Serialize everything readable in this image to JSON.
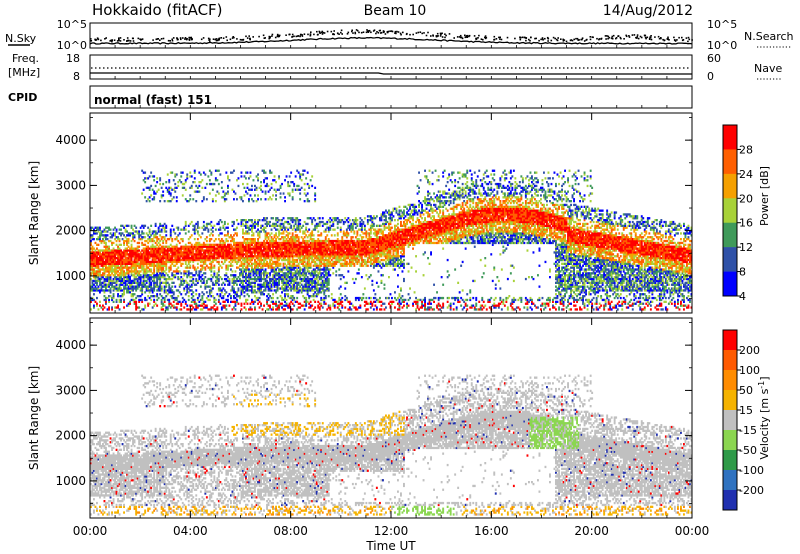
{
  "header": {
    "station": "Hokkaido (fitACF)",
    "beam": "Beam 10",
    "date": "14/Aug/2012"
  },
  "noise_panel": {
    "left_label": "N.Sky",
    "left_ticks": [
      "10^5",
      "10^0"
    ],
    "right_label": "N.Search",
    "right_ticks": [
      "10^5",
      "10^0"
    ]
  },
  "freq_panel": {
    "left_label_1": "Freq.",
    "left_label_2": "[MHz]",
    "left_ticks": [
      "18",
      "8"
    ],
    "right_label": "Nave",
    "right_ticks": [
      "60",
      "0"
    ]
  },
  "cpid_panel": {
    "label": "CPID",
    "value": "normal (fast) 151"
  },
  "chart_data": [
    {
      "type": "heatmap",
      "name": "power",
      "ylabel": "Slant Range [km]",
      "ylim": [
        180,
        4600
      ],
      "yticks": [
        "4000",
        "3000",
        "2000",
        "1000"
      ],
      "colorbar_label": "Power [dB]",
      "colorbar_ticks": [
        "28",
        "24",
        "20",
        "16",
        "12",
        "8",
        "4"
      ],
      "colors": [
        "#0000ff",
        "#2f51a8",
        "#3f9a5a",
        "#a8d238",
        "#f5a000",
        "#ff5f00",
        "#ff0000"
      ]
    },
    {
      "type": "heatmap",
      "name": "velocity",
      "ylabel": "Slant Range [km]",
      "ylim": [
        180,
        4600
      ],
      "yticks": [
        "4000",
        "3000",
        "2000",
        "1000"
      ],
      "colorbar_label": "Velocity [m s",
      "colorbar_label_sup": "-1",
      "colorbar_label_end": "]",
      "colorbar_ticks": [
        "200",
        "100",
        "50",
        "15",
        "-15",
        "-50",
        "-100",
        "-200"
      ],
      "colors": [
        "#2030b0",
        "#2f72c0",
        "#2e9a48",
        "#8bd650",
        "#c0c0c0",
        "#f5b300",
        "#ff8c00",
        "#ff5a00",
        "#ff0000"
      ]
    }
  ],
  "x_axis": {
    "ticks": [
      "00:00",
      "04:00",
      "08:00",
      "12:00",
      "16:00",
      "20:00",
      "00:00"
    ],
    "label": "Time UT"
  }
}
